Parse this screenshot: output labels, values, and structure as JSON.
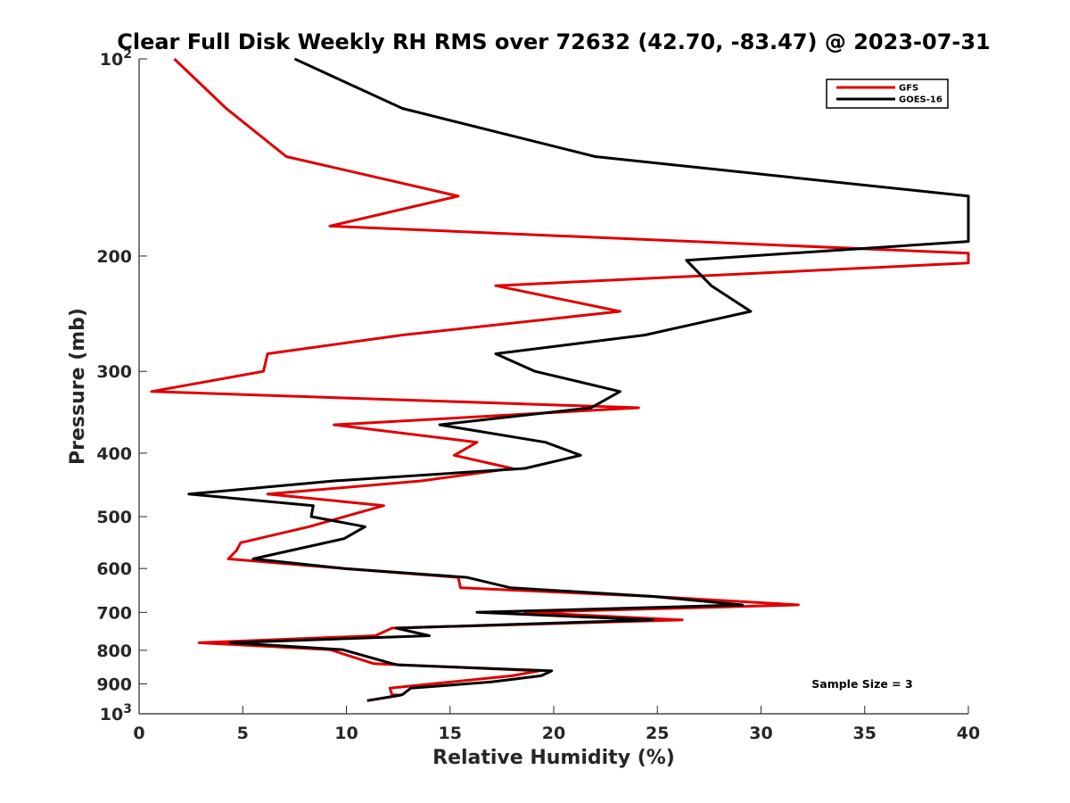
{
  "chart_data": {
    "type": "line",
    "title": "Clear Full Disk Weekly RH RMS over 72632 (42.70, -83.47) @ 2023-07-31",
    "xlabel": "Relative Humidity (%)",
    "ylabel": "Pressure (mb)",
    "xlim": [
      0,
      40
    ],
    "ylim": [
      100,
      1000
    ],
    "yscale": "log",
    "y_reversed": true,
    "grid": false,
    "legend_position": "top-right",
    "xticks": [
      0,
      5,
      10,
      15,
      20,
      25,
      30,
      35,
      40
    ],
    "yticks": [
      {
        "value": 100,
        "base": "10",
        "exp": "2"
      },
      {
        "value": 200,
        "label": "200"
      },
      {
        "value": 300,
        "label": "300"
      },
      {
        "value": 400,
        "label": "400"
      },
      {
        "value": 500,
        "label": "500"
      },
      {
        "value": 600,
        "label": "600"
      },
      {
        "value": 700,
        "label": "700"
      },
      {
        "value": 800,
        "label": "800"
      },
      {
        "value": 900,
        "label": "900"
      },
      {
        "value": 1000,
        "base": "10",
        "exp": "3"
      }
    ],
    "annotation": "Sample Size = 3",
    "series": [
      {
        "name": "GFS",
        "color": "#e00000",
        "points": [
          [
            1.7,
            100
          ],
          [
            4.2,
            119
          ],
          [
            7.1,
            141
          ],
          [
            15.4,
            162
          ],
          [
            9.2,
            180
          ],
          [
            40.0,
            198
          ],
          [
            40.0,
            205
          ],
          [
            17.2,
            222
          ],
          [
            23.2,
            243
          ],
          [
            12.7,
            264
          ],
          [
            6.2,
            282
          ],
          [
            6.0,
            300
          ],
          [
            0.6,
            322
          ],
          [
            24.1,
            341
          ],
          [
            9.4,
            362
          ],
          [
            16.3,
            385
          ],
          [
            15.2,
            403
          ],
          [
            18.0,
            422
          ],
          [
            13.6,
            441
          ],
          [
            6.2,
            462
          ],
          [
            11.8,
            481
          ],
          [
            8.2,
            518
          ],
          [
            4.9,
            548
          ],
          [
            4.7,
            563
          ],
          [
            4.3,
            580
          ],
          [
            9.9,
            600
          ],
          [
            15.4,
            619
          ],
          [
            15.5,
            642
          ],
          [
            24.8,
            662
          ],
          [
            31.8,
            682
          ],
          [
            18.6,
            700
          ],
          [
            26.2,
            719
          ],
          [
            12.2,
            740
          ],
          [
            11.4,
            760
          ],
          [
            2.9,
            779
          ],
          [
            9.2,
            798
          ],
          [
            11.3,
            838
          ],
          [
            12.7,
            842
          ],
          [
            19.3,
            860
          ],
          [
            18.0,
            875
          ],
          [
            12.1,
            914
          ],
          [
            12.2,
            935
          ],
          [
            12.6,
            937
          ],
          [
            11.0,
            955
          ]
        ]
      },
      {
        "name": "GOES-16",
        "color": "#000000",
        "points": [
          [
            7.5,
            100
          ],
          [
            12.7,
            119
          ],
          [
            22.0,
            141
          ],
          [
            40.0,
            162
          ],
          [
            40.0,
            190
          ],
          [
            26.4,
            203
          ],
          [
            27.6,
            222
          ],
          [
            29.5,
            243
          ],
          [
            24.4,
            264
          ],
          [
            17.2,
            282
          ],
          [
            19.1,
            300
          ],
          [
            23.2,
            322
          ],
          [
            21.8,
            341
          ],
          [
            14.5,
            362
          ],
          [
            19.6,
            385
          ],
          [
            21.3,
            403
          ],
          [
            18.6,
            422
          ],
          [
            9.4,
            441
          ],
          [
            2.4,
            462
          ],
          [
            8.4,
            481
          ],
          [
            8.3,
            500
          ],
          [
            10.9,
            518
          ],
          [
            9.9,
            540
          ],
          [
            5.5,
            580
          ],
          [
            9.9,
            600
          ],
          [
            15.8,
            619
          ],
          [
            17.9,
            642
          ],
          [
            24.8,
            662
          ],
          [
            29.1,
            682
          ],
          [
            16.3,
            700
          ],
          [
            24.8,
            719
          ],
          [
            12.4,
            740
          ],
          [
            14.0,
            760
          ],
          [
            4.4,
            779
          ],
          [
            9.8,
            798
          ],
          [
            12.2,
            838
          ],
          [
            12.5,
            842
          ],
          [
            19.9,
            860
          ],
          [
            19.4,
            875
          ],
          [
            17.0,
            894
          ],
          [
            13.1,
            914
          ],
          [
            12.7,
            935
          ],
          [
            11.0,
            955
          ]
        ]
      }
    ]
  }
}
